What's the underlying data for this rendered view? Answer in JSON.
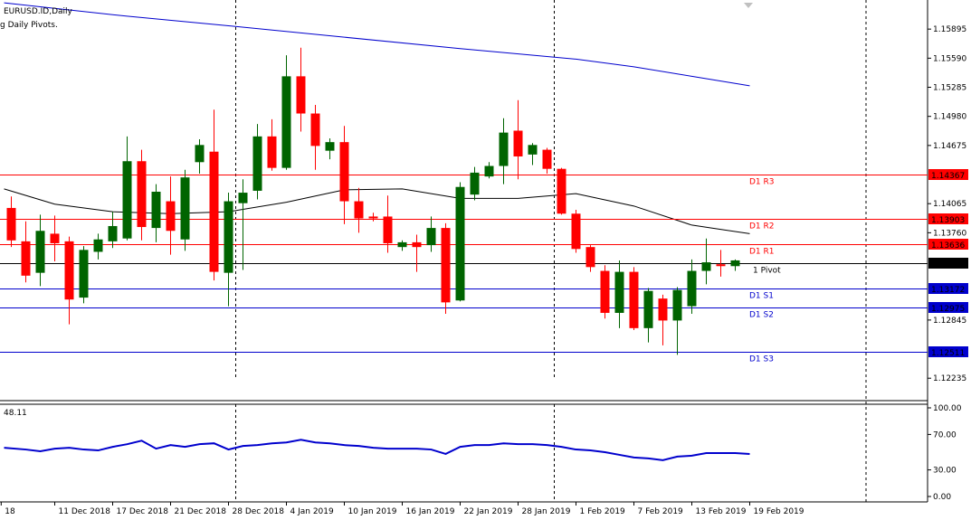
{
  "header": {
    "symbol_label": "EURUSD.ID,Daily",
    "indicator_label": "g Daily Pivots."
  },
  "sub_window": {
    "value_label": "48.11",
    "ticks": [
      "100.00",
      "70.00",
      "30.00",
      "0.00"
    ]
  },
  "colors": {
    "bull": "#006400",
    "bear": "#ff0000",
    "ma_slow": "#0000cd",
    "ma_fast": "#000000",
    "resistance": "#ff0000",
    "support": "#0000cd",
    "pivot": "#000000",
    "oscillator": "#0000cd"
  },
  "chart_data": {
    "type": "candlestick",
    "price_axis": {
      "range": [
        1.12,
        1.162
      ],
      "ticks": [
        "1.15895",
        "1.15590",
        "1.15285",
        "1.14980",
        "1.14675",
        "1.14065",
        "1.13760",
        "1.12845",
        "1.12235"
      ]
    },
    "date_labels": [
      {
        "label": "18",
        "index": -0.7
      },
      {
        "label": "11 Dec 2018",
        "index": 3
      },
      {
        "label": "17 Dec 2018",
        "index": 7
      },
      {
        "label": "21 Dec 2018",
        "index": 11
      },
      {
        "label": "28 Dec 2018",
        "index": 15
      },
      {
        "label": "4 Jan 2019",
        "index": 19
      },
      {
        "label": "10 Jan 2019",
        "index": 23
      },
      {
        "label": "16 Jan 2019",
        "index": 27
      },
      {
        "label": "22 Jan 2019",
        "index": 31
      },
      {
        "label": "28 Jan 2019",
        "index": 35
      },
      {
        "label": "1 Feb 2019",
        "index": 39
      },
      {
        "label": "7 Feb 2019",
        "index": 43
      },
      {
        "label": "13 Feb 2019",
        "index": 47
      },
      {
        "label": "19 Feb 2019",
        "index": 51
      }
    ],
    "candles": [
      [
        1.1402,
        1.1414,
        1.1361,
        1.1368
      ],
      [
        1.1367,
        1.1388,
        1.1324,
        1.1331
      ],
      [
        1.1334,
        1.1395,
        1.132,
        1.1378
      ],
      [
        1.1375,
        1.1394,
        1.1346,
        1.1365
      ],
      [
        1.1367,
        1.1372,
        1.128,
        1.1306
      ],
      [
        1.1308,
        1.1362,
        1.1302,
        1.1358
      ],
      [
        1.1356,
        1.1375,
        1.1348,
        1.1369
      ],
      [
        1.1367,
        1.1398,
        1.136,
        1.1383
      ],
      [
        1.137,
        1.1477,
        1.1368,
        1.1451
      ],
      [
        1.1451,
        1.1463,
        1.1368,
        1.1382
      ],
      [
        1.1381,
        1.1427,
        1.1366,
        1.1419
      ],
      [
        1.1409,
        1.1435,
        1.1353,
        1.1378
      ],
      [
        1.1369,
        1.1442,
        1.1357,
        1.1434
      ],
      [
        1.145,
        1.1474,
        1.1438,
        1.1468
      ],
      [
        1.1461,
        1.1505,
        1.1326,
        1.1335
      ],
      [
        1.1334,
        1.1418,
        1.1299,
        1.1409
      ],
      [
        1.1407,
        1.1432,
        1.1337,
        1.1418
      ],
      [
        1.142,
        1.149,
        1.1411,
        1.1477
      ],
      [
        1.1477,
        1.1495,
        1.1441,
        1.1444
      ],
      [
        1.1444,
        1.1562,
        1.1442,
        1.154
      ],
      [
        1.154,
        1.157,
        1.1482,
        1.1501
      ],
      [
        1.1501,
        1.151,
        1.1442,
        1.1467
      ],
      [
        1.1462,
        1.1475,
        1.1453,
        1.1471
      ],
      [
        1.1471,
        1.1488,
        1.1385,
        1.1409
      ],
      [
        1.1409,
        1.1423,
        1.1376,
        1.1391
      ],
      [
        1.1393,
        1.1397,
        1.1388,
        1.1391
      ],
      [
        1.1393,
        1.1415,
        1.1355,
        1.1365
      ],
      [
        1.1361,
        1.1368,
        1.1357,
        1.1366
      ],
      [
        1.1366,
        1.1374,
        1.1335,
        1.1361
      ],
      [
        1.1363,
        1.1393,
        1.1356,
        1.1381
      ],
      [
        1.1381,
        1.1386,
        1.1291,
        1.1303
      ],
      [
        1.1305,
        1.1429,
        1.1304,
        1.1424
      ],
      [
        1.1416,
        1.1445,
        1.141,
        1.1439
      ],
      [
        1.1435,
        1.145,
        1.1433,
        1.1446
      ],
      [
        1.1446,
        1.1496,
        1.1427,
        1.1481
      ],
      [
        1.1483,
        1.1515,
        1.1432,
        1.1456
      ],
      [
        1.1458,
        1.147,
        1.1447,
        1.1468
      ],
      [
        1.1463,
        1.1465,
        1.1438,
        1.1443
      ],
      [
        1.1443,
        1.1444,
        1.1395,
        1.1396
      ],
      [
        1.1396,
        1.14,
        1.1355,
        1.1359
      ],
      [
        1.1361,
        1.1363,
        1.1335,
        1.134
      ],
      [
        1.1336,
        1.1342,
        1.1286,
        1.1292
      ],
      [
        1.1292,
        1.1347,
        1.1276,
        1.1335
      ],
      [
        1.1335,
        1.134,
        1.1274,
        1.1276
      ],
      [
        1.1276,
        1.1318,
        1.1261,
        1.1315
      ],
      [
        1.1307,
        1.1311,
        1.1258,
        1.1284
      ],
      [
        1.1284,
        1.1319,
        1.1248,
        1.1316
      ],
      [
        1.1299,
        1.1348,
        1.1291,
        1.1336
      ],
      [
        1.1336,
        1.137,
        1.1322,
        1.1345
      ],
      [
        1.1343,
        1.1358,
        1.133,
        1.1341
      ],
      [
        1.1341,
        1.1348,
        1.1336,
        1.1347
      ]
    ],
    "candle_spacing_index_base": 0,
    "ma_slow": [
      [
        -0.5,
        1.1617
      ],
      [
        8,
        1.1603
      ],
      [
        15,
        1.1593
      ],
      [
        23,
        1.1581
      ],
      [
        31,
        1.1569
      ],
      [
        39,
        1.1558
      ],
      [
        43,
        1.155
      ],
      [
        47,
        1.154
      ],
      [
        51,
        1.153
      ]
    ],
    "ma_fast": [
      [
        -0.5,
        1.1422
      ],
      [
        3,
        1.1406
      ],
      [
        7,
        1.1398
      ],
      [
        11,
        1.1396
      ],
      [
        15,
        1.1398
      ],
      [
        19,
        1.1408
      ],
      [
        23,
        1.1421
      ],
      [
        27,
        1.1422
      ],
      [
        31,
        1.1412
      ],
      [
        35,
        1.1412
      ],
      [
        39,
        1.1417
      ],
      [
        43,
        1.1404
      ],
      [
        47,
        1.1384
      ],
      [
        51,
        1.1375
      ]
    ],
    "pivot_levels": [
      {
        "name": "D1 R3",
        "value": 1.14367,
        "tag": "1.14367",
        "color_key": "resistance"
      },
      {
        "name": "D1 R2",
        "value": 1.13903,
        "tag": "1.13903",
        "color_key": "resistance"
      },
      {
        "name": "D1 R1",
        "value": 1.13636,
        "tag": "1.13636",
        "color_key": "resistance"
      },
      {
        "name": "1 Pivot",
        "value": 1.13439,
        "tag": "1.13439",
        "color_key": "pivot"
      },
      {
        "name": "D1 S1",
        "value": 1.13172,
        "tag": "1.13172",
        "color_key": "support"
      },
      {
        "name": "D1 S2",
        "value": 1.12975,
        "tag": "1.12975",
        "color_key": "support"
      },
      {
        "name": "D1 S3",
        "value": 1.12511,
        "tag": "1.12511",
        "color_key": "support"
      }
    ],
    "vertical_separators_index": [
      15.5,
      37.5
    ],
    "oscillator": {
      "range": [
        0,
        100
      ],
      "values": [
        [
          -0.5,
          55
        ],
        [
          1,
          53
        ],
        [
          2,
          51
        ],
        [
          3,
          54
        ],
        [
          4,
          55
        ],
        [
          5,
          53
        ],
        [
          6,
          52
        ],
        [
          7,
          56
        ],
        [
          8,
          59
        ],
        [
          9,
          63
        ],
        [
          10,
          54
        ],
        [
          11,
          58
        ],
        [
          12,
          56
        ],
        [
          13,
          59
        ],
        [
          14,
          60
        ],
        [
          15,
          53
        ],
        [
          16,
          57
        ],
        [
          17,
          58
        ],
        [
          18,
          60
        ],
        [
          19,
          61
        ],
        [
          20,
          64
        ],
        [
          21,
          61
        ],
        [
          22,
          60
        ],
        [
          23,
          58
        ],
        [
          24,
          57
        ],
        [
          25,
          55
        ],
        [
          26,
          54
        ],
        [
          27,
          54
        ],
        [
          28,
          54
        ],
        [
          29,
          53
        ],
        [
          30,
          48
        ],
        [
          31,
          56
        ],
        [
          32,
          58
        ],
        [
          33,
          58
        ],
        [
          34,
          60
        ],
        [
          35,
          59
        ],
        [
          36,
          59
        ],
        [
          37,
          58
        ],
        [
          38,
          56
        ],
        [
          39,
          53
        ],
        [
          40,
          52
        ],
        [
          41,
          50
        ],
        [
          42,
          47
        ],
        [
          43,
          44
        ],
        [
          44,
          43
        ],
        [
          45,
          41
        ],
        [
          46,
          45
        ],
        [
          47,
          46
        ],
        [
          48,
          49
        ],
        [
          49,
          49
        ],
        [
          50,
          49
        ],
        [
          51,
          48
        ]
      ]
    }
  }
}
